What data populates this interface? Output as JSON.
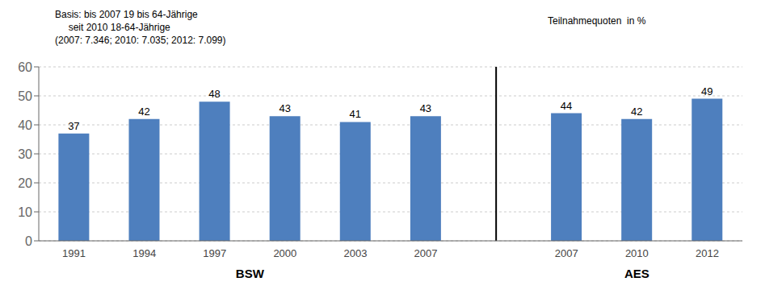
{
  "chart_data": {
    "type": "bar",
    "categories": [
      "1991",
      "1994",
      "1997",
      "2000",
      "2003",
      "2007",
      "2007",
      "2010",
      "2012"
    ],
    "values": [
      37,
      42,
      48,
      43,
      41,
      43,
      44,
      42,
      49
    ],
    "color": "#4E7FBE",
    "groups": [
      "BSW",
      "BSW",
      "BSW",
      "BSW",
      "BSW",
      "BSW",
      "AES",
      "AES",
      "AES"
    ],
    "ylim": [
      0,
      60
    ],
    "yticks": [
      0,
      10,
      20,
      30,
      40,
      50,
      60
    ],
    "grid": true,
    "data_labels": true,
    "annotations": [
      "Basis: bis 2007 19 bis 64-Jährige",
      "     seit 2010 18-64-Jährige",
      "(2007: 7.346; 2010: 7.035; 2012: 7.099)",
      "Teilnahmequoten  in %"
    ]
  }
}
